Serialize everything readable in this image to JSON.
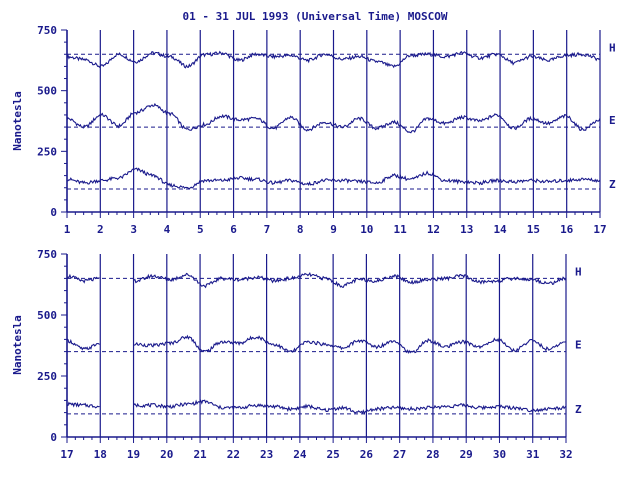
{
  "chart_data": {
    "type": "line",
    "title": "01 - 31 JUL 1993 (Universal Time) MOSCOW",
    "ylabel": "Nanotesla",
    "color": "#1a1a8c",
    "ylim": [
      0,
      750
    ],
    "yticks": [
      0,
      250,
      500,
      750
    ],
    "series_names": [
      "H",
      "E",
      "Z"
    ],
    "baselines": {
      "H": 650,
      "E": 350,
      "Z": 95
    },
    "panels": [
      {
        "x_ticks": [
          "1",
          "2",
          "3",
          "4",
          "5",
          "6",
          "7",
          "8",
          "9",
          "10",
          "11",
          "12",
          "13",
          "14",
          "15",
          "16",
          "17"
        ],
        "gaps": [],
        "series": [
          {
            "name": "H",
            "values": [
              640,
              628,
              600,
              650,
              620,
              655,
              640,
              600,
              648,
              655,
              625,
              650,
              640,
              645,
              625,
              650,
              630,
              640,
              620,
              600,
              645,
              650,
              640,
              655,
              635,
              650,
              615,
              640,
              625,
              645,
              650,
              630
            ]
          },
          {
            "name": "E",
            "values": [
              385,
              350,
              400,
              355,
              410,
              440,
              405,
              340,
              360,
              395,
              380,
              385,
              345,
              390,
              340,
              370,
              350,
              385,
              345,
              370,
              330,
              385,
              365,
              390,
              375,
              400,
              345,
              385,
              365,
              395,
              340,
              380
            ]
          },
          {
            "name": "Z",
            "values": [
              135,
              120,
              130,
              140,
              175,
              150,
              110,
              100,
              130,
              130,
              140,
              135,
              120,
              130,
              115,
              130,
              130,
              125,
              120,
              150,
              135,
              160,
              130,
              125,
              120,
              130,
              125,
              130,
              125,
              130,
              135,
              130
            ]
          }
        ]
      },
      {
        "x_ticks": [
          "17",
          "18",
          "19",
          "20",
          "21",
          "22",
          "23",
          "24",
          "25",
          "26",
          "27",
          "28",
          "29",
          "30",
          "31",
          "32"
        ],
        "gaps": [
          [
            1,
            2
          ]
        ],
        "series": [
          {
            "name": "H",
            "values": [
              660,
              640,
              650,
              665,
              640,
              660,
              645,
              665,
              620,
              650,
              645,
              655,
              640,
              650,
              665,
              650,
              620,
              645,
              640,
              660,
              635,
              645,
              650,
              660,
              635,
              640,
              650,
              645,
              630,
              650
            ]
          },
          {
            "name": "E",
            "values": [
              395,
              360,
              385,
              370,
              380,
              375,
              385,
              410,
              350,
              390,
              385,
              410,
              380,
              350,
              390,
              380,
              365,
              395,
              370,
              395,
              345,
              395,
              370,
              390,
              370,
              400,
              355,
              395,
              360,
              390
            ]
          },
          {
            "name": "Z",
            "values": [
              135,
              130,
              125,
              125,
              130,
              130,
              125,
              135,
              145,
              120,
              120,
              130,
              125,
              115,
              125,
              110,
              120,
              100,
              115,
              120,
              115,
              120,
              125,
              130,
              120,
              125,
              120,
              110,
              115,
              120
            ]
          }
        ]
      }
    ]
  }
}
